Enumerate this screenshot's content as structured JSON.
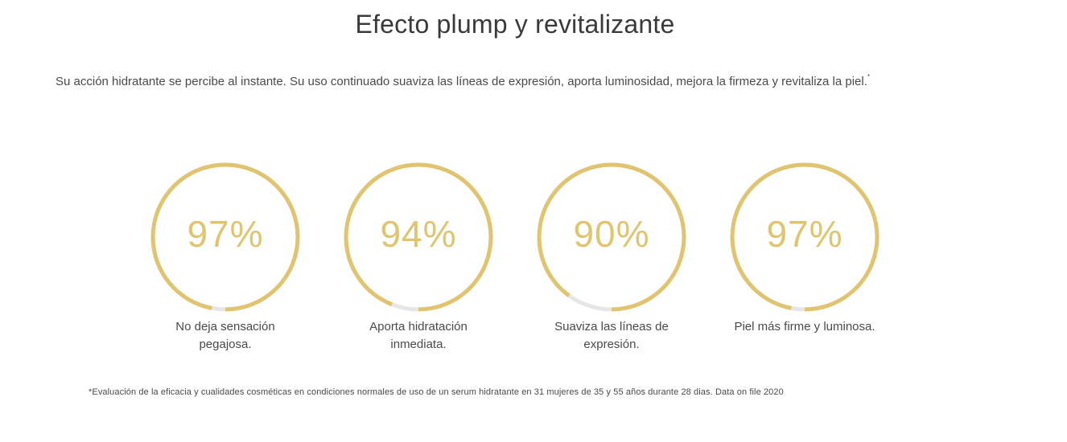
{
  "section": {
    "title": "Efecto plump y revitalizante",
    "intro": "Su acción hidratante se percibe al instante. Su uso continuado suaviza las líneas de expresión, aporta luminosidad, mejora la firmeza y revitaliza la piel.",
    "intro_mark": "*",
    "footnote": "*Evaluación de la eficacia y cualidades cosméticas en condiciones normales de uso de un serum hidratante en 31 mujeres de 35 y 55 años durante 28 dias. Data on file 2020"
  },
  "colors": {
    "ring_fill": "#e0c46f",
    "ring_track": "#e6e6e6",
    "text": "#4a4a4a"
  },
  "stats": [
    {
      "value": 97,
      "label": "97%",
      "caption": "No deja sensación pegajosa."
    },
    {
      "value": 94,
      "label": "94%",
      "caption": "Aporta hidratación inmediata."
    },
    {
      "value": 90,
      "label": "90%",
      "caption": "Suaviza las líneas de expresión."
    },
    {
      "value": 97,
      "label": "97%",
      "caption": "Piel más firme y luminosa."
    }
  ]
}
